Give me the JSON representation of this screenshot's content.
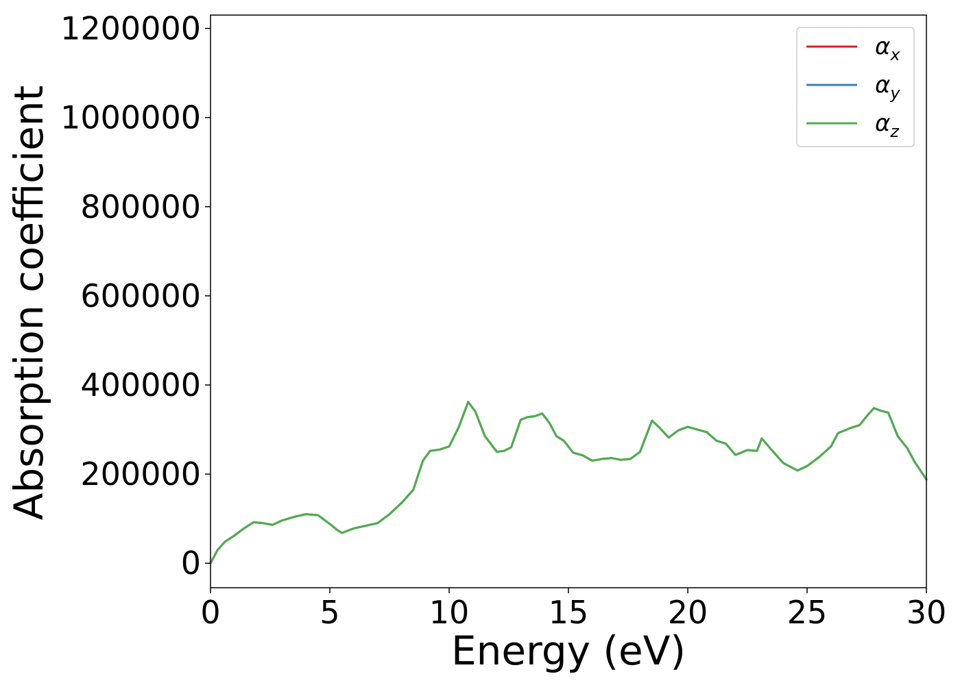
{
  "chart_data": {
    "type": "line",
    "title": "",
    "xlabel": "Energy (eV)",
    "ylabel": "Absorption coefficient",
    "xlim": [
      0,
      30
    ],
    "ylim": [
      -55000,
      1230000
    ],
    "xticks": [
      0,
      5,
      10,
      15,
      20,
      25,
      30
    ],
    "yticks": [
      0,
      200000,
      400000,
      600000,
      800000,
      1000000,
      1200000
    ],
    "grid": false,
    "legend_position": "top-right",
    "colors": {
      "alpha_x": "#e41a1c",
      "alpha_y": "#377eb8",
      "alpha_z": "#4daf4a"
    },
    "series": [
      {
        "name": "α_x",
        "legend_main": "α",
        "legend_sub": "x",
        "color": "#e41a1c",
        "points": [
          [
            0,
            0
          ],
          [
            0.3,
            30000
          ],
          [
            0.6,
            48000
          ],
          [
            1.0,
            62000
          ],
          [
            1.4,
            78000
          ],
          [
            1.8,
            92000
          ],
          [
            2.2,
            90000
          ],
          [
            2.6,
            86000
          ],
          [
            3.0,
            96000
          ],
          [
            3.5,
            104000
          ],
          [
            4.0,
            110000
          ],
          [
            4.5,
            108000
          ],
          [
            5.0,
            88000
          ],
          [
            5.3,
            75000
          ],
          [
            5.5,
            68000
          ],
          [
            6.0,
            78000
          ],
          [
            6.5,
            84000
          ],
          [
            7.0,
            90000
          ],
          [
            7.5,
            110000
          ],
          [
            8.0,
            135000
          ],
          [
            8.5,
            165000
          ],
          [
            8.9,
            230000
          ],
          [
            9.2,
            252000
          ],
          [
            9.6,
            255000
          ],
          [
            10.0,
            262000
          ],
          [
            10.4,
            305000
          ],
          [
            10.8,
            362000
          ],
          [
            11.1,
            340000
          ],
          [
            11.5,
            285000
          ],
          [
            12.0,
            250000
          ],
          [
            12.3,
            252000
          ],
          [
            12.6,
            260000
          ],
          [
            13.0,
            322000
          ],
          [
            13.3,
            328000
          ],
          [
            13.6,
            330000
          ],
          [
            13.9,
            336000
          ],
          [
            14.2,
            315000
          ],
          [
            14.5,
            285000
          ],
          [
            14.8,
            275000
          ],
          [
            15.2,
            248000
          ],
          [
            15.6,
            242000
          ],
          [
            16.0,
            230000
          ],
          [
            16.4,
            234000
          ],
          [
            16.8,
            236000
          ],
          [
            17.2,
            232000
          ],
          [
            17.6,
            234000
          ],
          [
            18.0,
            250000
          ],
          [
            18.5,
            320000
          ],
          [
            18.8,
            305000
          ],
          [
            19.2,
            282000
          ],
          [
            19.6,
            298000
          ],
          [
            20.0,
            306000
          ],
          [
            20.4,
            300000
          ],
          [
            20.8,
            294000
          ],
          [
            21.2,
            275000
          ],
          [
            21.6,
            268000
          ],
          [
            22.0,
            243000
          ],
          [
            22.5,
            254000
          ],
          [
            22.9,
            252000
          ],
          [
            23.1,
            280000
          ],
          [
            23.5,
            255000
          ],
          [
            24.0,
            225000
          ],
          [
            24.6,
            208000
          ],
          [
            25.0,
            218000
          ],
          [
            25.5,
            238000
          ],
          [
            26.0,
            262000
          ],
          [
            26.3,
            292000
          ],
          [
            26.8,
            303000
          ],
          [
            27.2,
            310000
          ],
          [
            27.5,
            330000
          ],
          [
            27.8,
            348000
          ],
          [
            28.1,
            342000
          ],
          [
            28.4,
            338000
          ],
          [
            28.8,
            285000
          ],
          [
            29.2,
            258000
          ],
          [
            29.5,
            228000
          ],
          [
            30.0,
            188000
          ]
        ]
      },
      {
        "name": "α_y",
        "legend_main": "α",
        "legend_sub": "y",
        "color": "#377eb8",
        "points": [
          [
            0,
            0
          ],
          [
            0.3,
            30000
          ],
          [
            0.6,
            48000
          ],
          [
            1.0,
            62000
          ],
          [
            1.4,
            78000
          ],
          [
            1.8,
            92000
          ],
          [
            2.2,
            90000
          ],
          [
            2.6,
            86000
          ],
          [
            3.0,
            96000
          ],
          [
            3.5,
            104000
          ],
          [
            4.0,
            110000
          ],
          [
            4.5,
            108000
          ],
          [
            5.0,
            88000
          ],
          [
            5.3,
            75000
          ],
          [
            5.5,
            68000
          ],
          [
            6.0,
            78000
          ],
          [
            6.5,
            84000
          ],
          [
            7.0,
            90000
          ],
          [
            7.5,
            110000
          ],
          [
            8.0,
            135000
          ],
          [
            8.5,
            165000
          ],
          [
            8.9,
            230000
          ],
          [
            9.2,
            252000
          ],
          [
            9.6,
            255000
          ],
          [
            10.0,
            262000
          ],
          [
            10.4,
            305000
          ],
          [
            10.8,
            362000
          ],
          [
            11.1,
            340000
          ],
          [
            11.5,
            285000
          ],
          [
            12.0,
            250000
          ],
          [
            12.3,
            252000
          ],
          [
            12.6,
            260000
          ],
          [
            13.0,
            322000
          ],
          [
            13.3,
            328000
          ],
          [
            13.6,
            330000
          ],
          [
            13.9,
            336000
          ],
          [
            14.2,
            315000
          ],
          [
            14.5,
            285000
          ],
          [
            14.8,
            275000
          ],
          [
            15.2,
            248000
          ],
          [
            15.6,
            242000
          ],
          [
            16.0,
            230000
          ],
          [
            16.4,
            234000
          ],
          [
            16.8,
            236000
          ],
          [
            17.2,
            232000
          ],
          [
            17.6,
            234000
          ],
          [
            18.0,
            250000
          ],
          [
            18.5,
            320000
          ],
          [
            18.8,
            305000
          ],
          [
            19.2,
            282000
          ],
          [
            19.6,
            298000
          ],
          [
            20.0,
            306000
          ],
          [
            20.4,
            300000
          ],
          [
            20.8,
            294000
          ],
          [
            21.2,
            275000
          ],
          [
            21.6,
            268000
          ],
          [
            22.0,
            243000
          ],
          [
            22.5,
            254000
          ],
          [
            22.9,
            252000
          ],
          [
            23.1,
            280000
          ],
          [
            23.5,
            255000
          ],
          [
            24.0,
            225000
          ],
          [
            24.6,
            208000
          ],
          [
            25.0,
            218000
          ],
          [
            25.5,
            238000
          ],
          [
            26.0,
            262000
          ],
          [
            26.3,
            292000
          ],
          [
            26.8,
            303000
          ],
          [
            27.2,
            310000
          ],
          [
            27.5,
            330000
          ],
          [
            27.8,
            348000
          ],
          [
            28.1,
            342000
          ],
          [
            28.4,
            338000
          ],
          [
            28.8,
            285000
          ],
          [
            29.2,
            258000
          ],
          [
            29.5,
            228000
          ],
          [
            30.0,
            188000
          ]
        ]
      },
      {
        "name": "α_z",
        "legend_main": "α",
        "legend_sub": "z",
        "color": "#4daf4a",
        "points": [
          [
            0,
            0
          ],
          [
            0.3,
            30000
          ],
          [
            0.6,
            48000
          ],
          [
            1.0,
            62000
          ],
          [
            1.4,
            78000
          ],
          [
            1.8,
            92000
          ],
          [
            2.2,
            90000
          ],
          [
            2.6,
            86000
          ],
          [
            3.0,
            96000
          ],
          [
            3.5,
            104000
          ],
          [
            4.0,
            110000
          ],
          [
            4.5,
            108000
          ],
          [
            5.0,
            88000
          ],
          [
            5.3,
            75000
          ],
          [
            5.5,
            68000
          ],
          [
            6.0,
            78000
          ],
          [
            6.5,
            84000
          ],
          [
            7.0,
            90000
          ],
          [
            7.5,
            110000
          ],
          [
            8.0,
            135000
          ],
          [
            8.5,
            165000
          ],
          [
            8.9,
            230000
          ],
          [
            9.2,
            252000
          ],
          [
            9.6,
            255000
          ],
          [
            10.0,
            262000
          ],
          [
            10.4,
            305000
          ],
          [
            10.8,
            362000
          ],
          [
            11.1,
            340000
          ],
          [
            11.5,
            285000
          ],
          [
            12.0,
            250000
          ],
          [
            12.3,
            252000
          ],
          [
            12.6,
            260000
          ],
          [
            13.0,
            322000
          ],
          [
            13.3,
            328000
          ],
          [
            13.6,
            330000
          ],
          [
            13.9,
            336000
          ],
          [
            14.2,
            315000
          ],
          [
            14.5,
            285000
          ],
          [
            14.8,
            275000
          ],
          [
            15.2,
            248000
          ],
          [
            15.6,
            242000
          ],
          [
            16.0,
            230000
          ],
          [
            16.4,
            234000
          ],
          [
            16.8,
            236000
          ],
          [
            17.2,
            232000
          ],
          [
            17.6,
            234000
          ],
          [
            18.0,
            250000
          ],
          [
            18.5,
            320000
          ],
          [
            18.8,
            305000
          ],
          [
            19.2,
            282000
          ],
          [
            19.6,
            298000
          ],
          [
            20.0,
            306000
          ],
          [
            20.4,
            300000
          ],
          [
            20.8,
            294000
          ],
          [
            21.2,
            275000
          ],
          [
            21.6,
            268000
          ],
          [
            22.0,
            243000
          ],
          [
            22.5,
            254000
          ],
          [
            22.9,
            252000
          ],
          [
            23.1,
            280000
          ],
          [
            23.5,
            255000
          ],
          [
            24.0,
            225000
          ],
          [
            24.6,
            208000
          ],
          [
            25.0,
            218000
          ],
          [
            25.5,
            238000
          ],
          [
            26.0,
            262000
          ],
          [
            26.3,
            292000
          ],
          [
            26.8,
            303000
          ],
          [
            27.2,
            310000
          ],
          [
            27.5,
            330000
          ],
          [
            27.8,
            348000
          ],
          [
            28.1,
            342000
          ],
          [
            28.4,
            338000
          ],
          [
            28.8,
            285000
          ],
          [
            29.2,
            258000
          ],
          [
            29.5,
            228000
          ],
          [
            30.0,
            188000
          ]
        ]
      }
    ]
  }
}
